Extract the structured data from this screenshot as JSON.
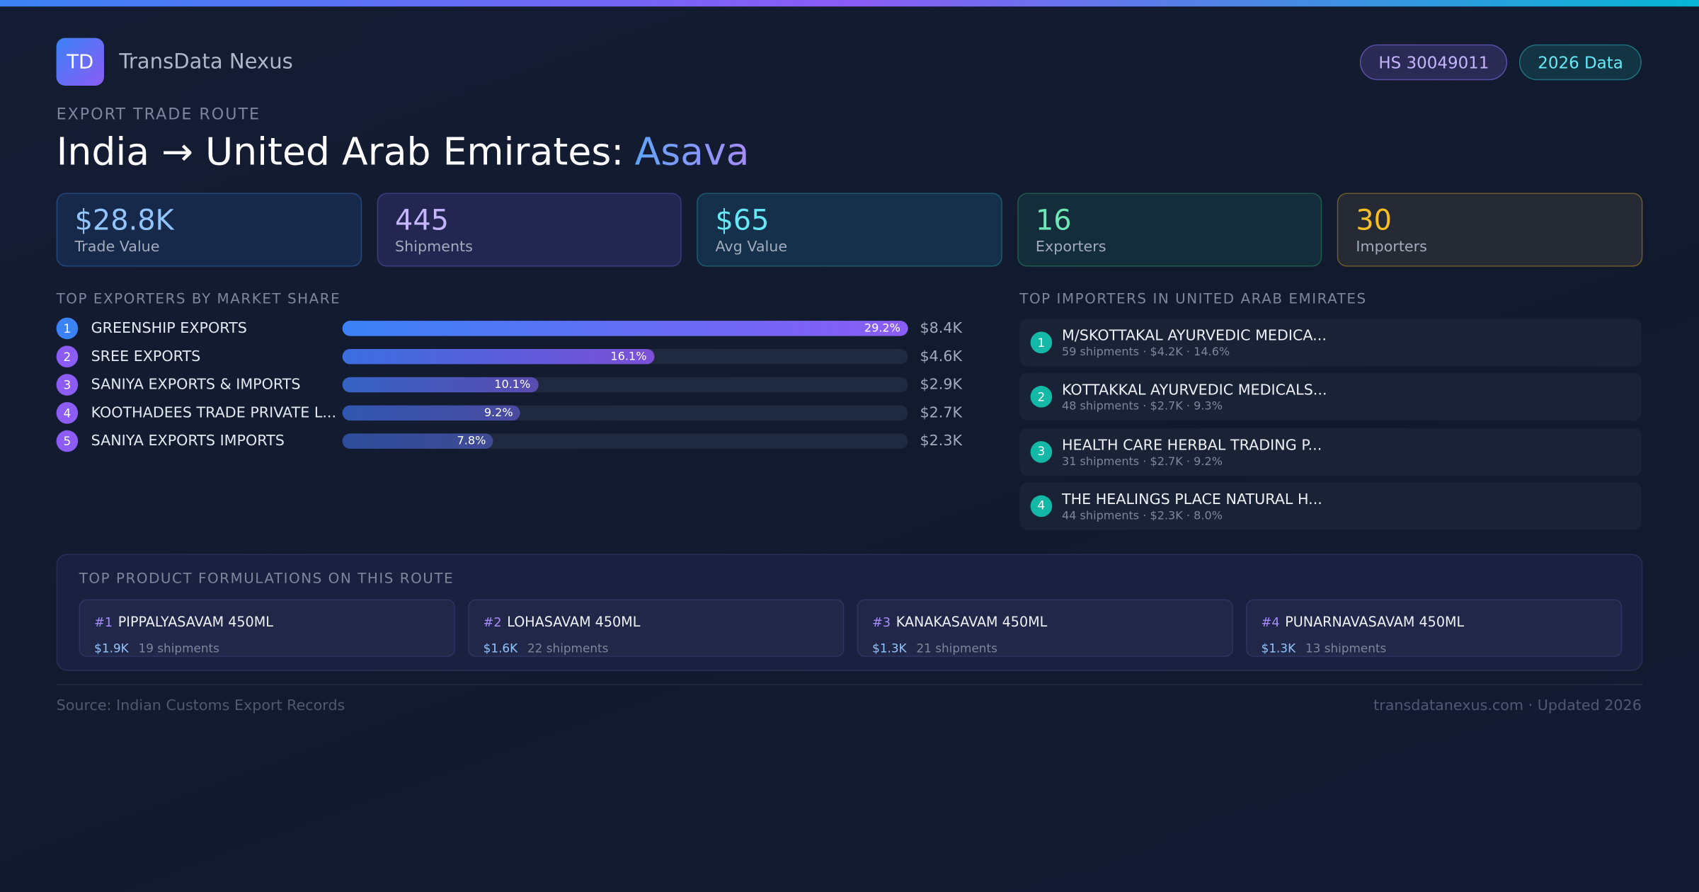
{
  "header": {
    "logo": "TD",
    "brand": "TransData Nexus",
    "badges": [
      "HS 30049011",
      "2026 Data"
    ],
    "eyebrow": "EXPORT TRADE ROUTE",
    "title": "India → United Arab Emirates:",
    "title_highlight": "Asava"
  },
  "stats": [
    {
      "value": "$28.8K",
      "label": "Trade Value"
    },
    {
      "value": "445",
      "label": "Shipments"
    },
    {
      "value": "$65",
      "label": "Avg Value"
    },
    {
      "value": "16",
      "label": "Exporters"
    },
    {
      "value": "30",
      "label": "Importers"
    }
  ],
  "exporters": {
    "title": "TOP EXPORTERS BY MARKET SHARE",
    "ranks": [
      1,
      2,
      3,
      4,
      5
    ],
    "names": [
      "GREENSHIP EXPORTS",
      "SREE EXPORTS",
      "SANIYA EXPORTS & IMPORTS",
      "KOOTHADEES TRADE PRIVATE L...",
      "SANIYA EXPORTS IMPORTS"
    ],
    "shares": [
      29.2,
      16.1,
      10.1,
      9.2,
      7.8
    ],
    "share_labels": [
      "29.2%",
      "16.1%",
      "10.1%",
      "9.2%",
      "7.8%"
    ],
    "value_labels": [
      "$8.4K",
      "$4.6K",
      "$2.9K",
      "$2.7K",
      "$2.3K"
    ]
  },
  "importers": {
    "title": "TOP IMPORTERS IN UNITED ARAB EMIRATES",
    "items": [
      {
        "rank": 1,
        "name": "M/SKOTTAKAL AYURVEDIC MEDICA...",
        "detail": "59 shipments · $4.2K · 14.6%"
      },
      {
        "rank": 2,
        "name": "KOTTAKKAL AYURVEDIC MEDICALS...",
        "detail": "48 shipments · $2.7K · 9.3%"
      },
      {
        "rank": 3,
        "name": "HEALTH CARE HERBAL TRADING P...",
        "detail": "31 shipments · $2.7K · 9.2%"
      },
      {
        "rank": 4,
        "name": "THE HEALINGS PLACE NATURAL H...",
        "detail": "44 shipments · $2.3K · 8.0%"
      }
    ]
  },
  "products": {
    "title": "TOP PRODUCT FORMULATIONS ON THIS ROUTE",
    "items": [
      {
        "rank": "#1",
        "name": "PIPPALYASAVAM 450ML",
        "value": "$1.9K",
        "shipments": "19 shipments"
      },
      {
        "rank": "#2",
        "name": "LOHASAVAM 450ML",
        "value": "$1.6K",
        "shipments": "22 shipments"
      },
      {
        "rank": "#3",
        "name": "KANAKASAVAM 450ML",
        "value": "$1.3K",
        "shipments": "21 shipments"
      },
      {
        "rank": "#4",
        "name": "PUNARNAVASAVAM 450ML",
        "value": "$1.3K",
        "shipments": "13 shipments"
      }
    ]
  },
  "footer": {
    "source": "Source: Indian Customs Export Records",
    "site": "transdatanexus.com · Updated 2026"
  }
}
